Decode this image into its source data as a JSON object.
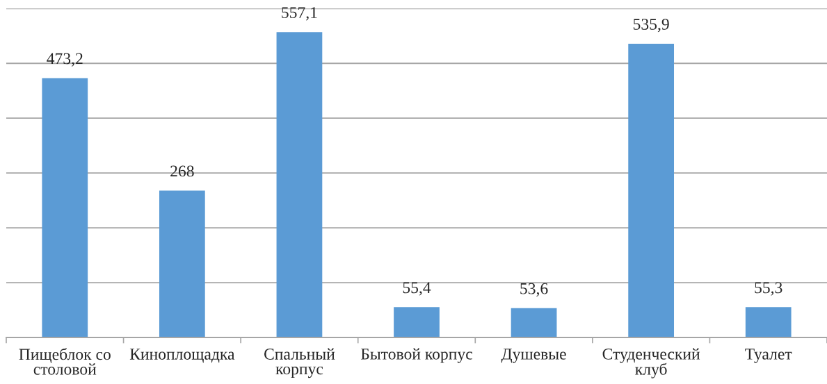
{
  "chart_data": {
    "type": "bar",
    "categories": [
      "Пищеблок со\nстоловой",
      "Киноплощадка",
      "Спальный\nкорпус",
      "Бытовой корпус",
      "Душевые",
      "Студенческий\nклуб",
      "Туалет"
    ],
    "values": [
      473.2,
      268,
      557.1,
      55.4,
      53.6,
      535.9,
      55.3
    ],
    "value_labels": [
      "473,2",
      "268",
      "557,1",
      "55,4",
      "53,6",
      "535,9",
      "55,3"
    ],
    "color": "#5b9bd5",
    "ylim": [
      0,
      600
    ],
    "yticks": [
      {
        "value": 0,
        "label": null
      },
      {
        "value": 100,
        "label": null
      },
      {
        "value": 200,
        "label": null
      },
      {
        "value": 300,
        "label": null
      },
      {
        "value": 400,
        "label": null
      },
      {
        "value": 500,
        "label": null
      },
      {
        "value": 600,
        "label": null
      }
    ],
    "grid": "y",
    "tick_labels": "x"
  }
}
